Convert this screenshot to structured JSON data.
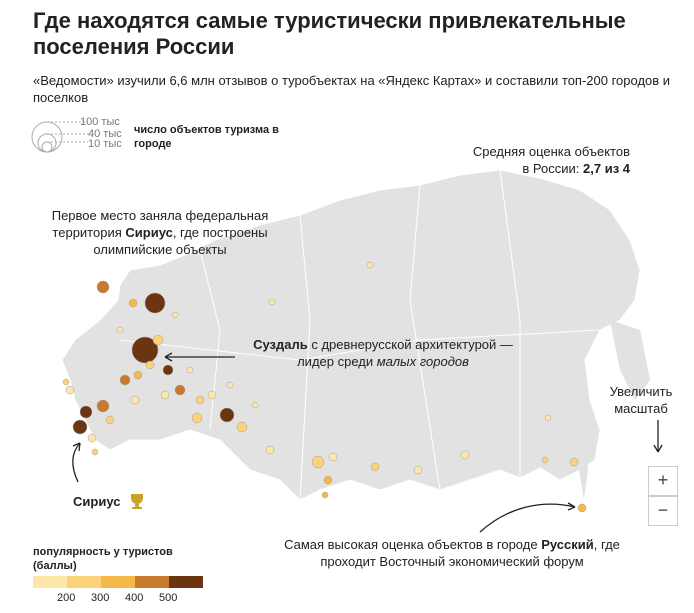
{
  "header": {
    "title": "Где находятся самые туристически привлекательные поселения России",
    "subtitle": "«Ведомости» изучили 6,6 млн отзывов о туробъектах на «Яндекс Картах» и составили топ-200 городов и поселков"
  },
  "size_legend": {
    "labels": [
      "100 тыс",
      "40 тыс",
      "10 тыс"
    ],
    "title": "число объектов туризма в городе"
  },
  "average_note": [
    "Средняя оценка объектов в России: ",
    "2,7 из 4"
  ],
  "annotations": {
    "sirius_first": [
      "Первое место заняла федеральная территория ",
      "Сириус",
      ", где построены олимпийские объекты"
    ],
    "suzdal": [
      "Суздаль",
      " с древнерусской архитектурой — лидер среди ",
      "малых городов"
    ],
    "sirius_label": "Сириус",
    "russkiy": [
      "Самая высокая оценка объектов в городе ",
      "Русский",
      ", где проходит Восточный экономический форум"
    ]
  },
  "zoom": {
    "label": "Увеличить масштаб",
    "plus": "+",
    "minus": "−"
  },
  "color_legend": {
    "title": "популярность у туристов (баллы)",
    "ticks": [
      "200",
      "300",
      "400",
      "500"
    ]
  }
}
